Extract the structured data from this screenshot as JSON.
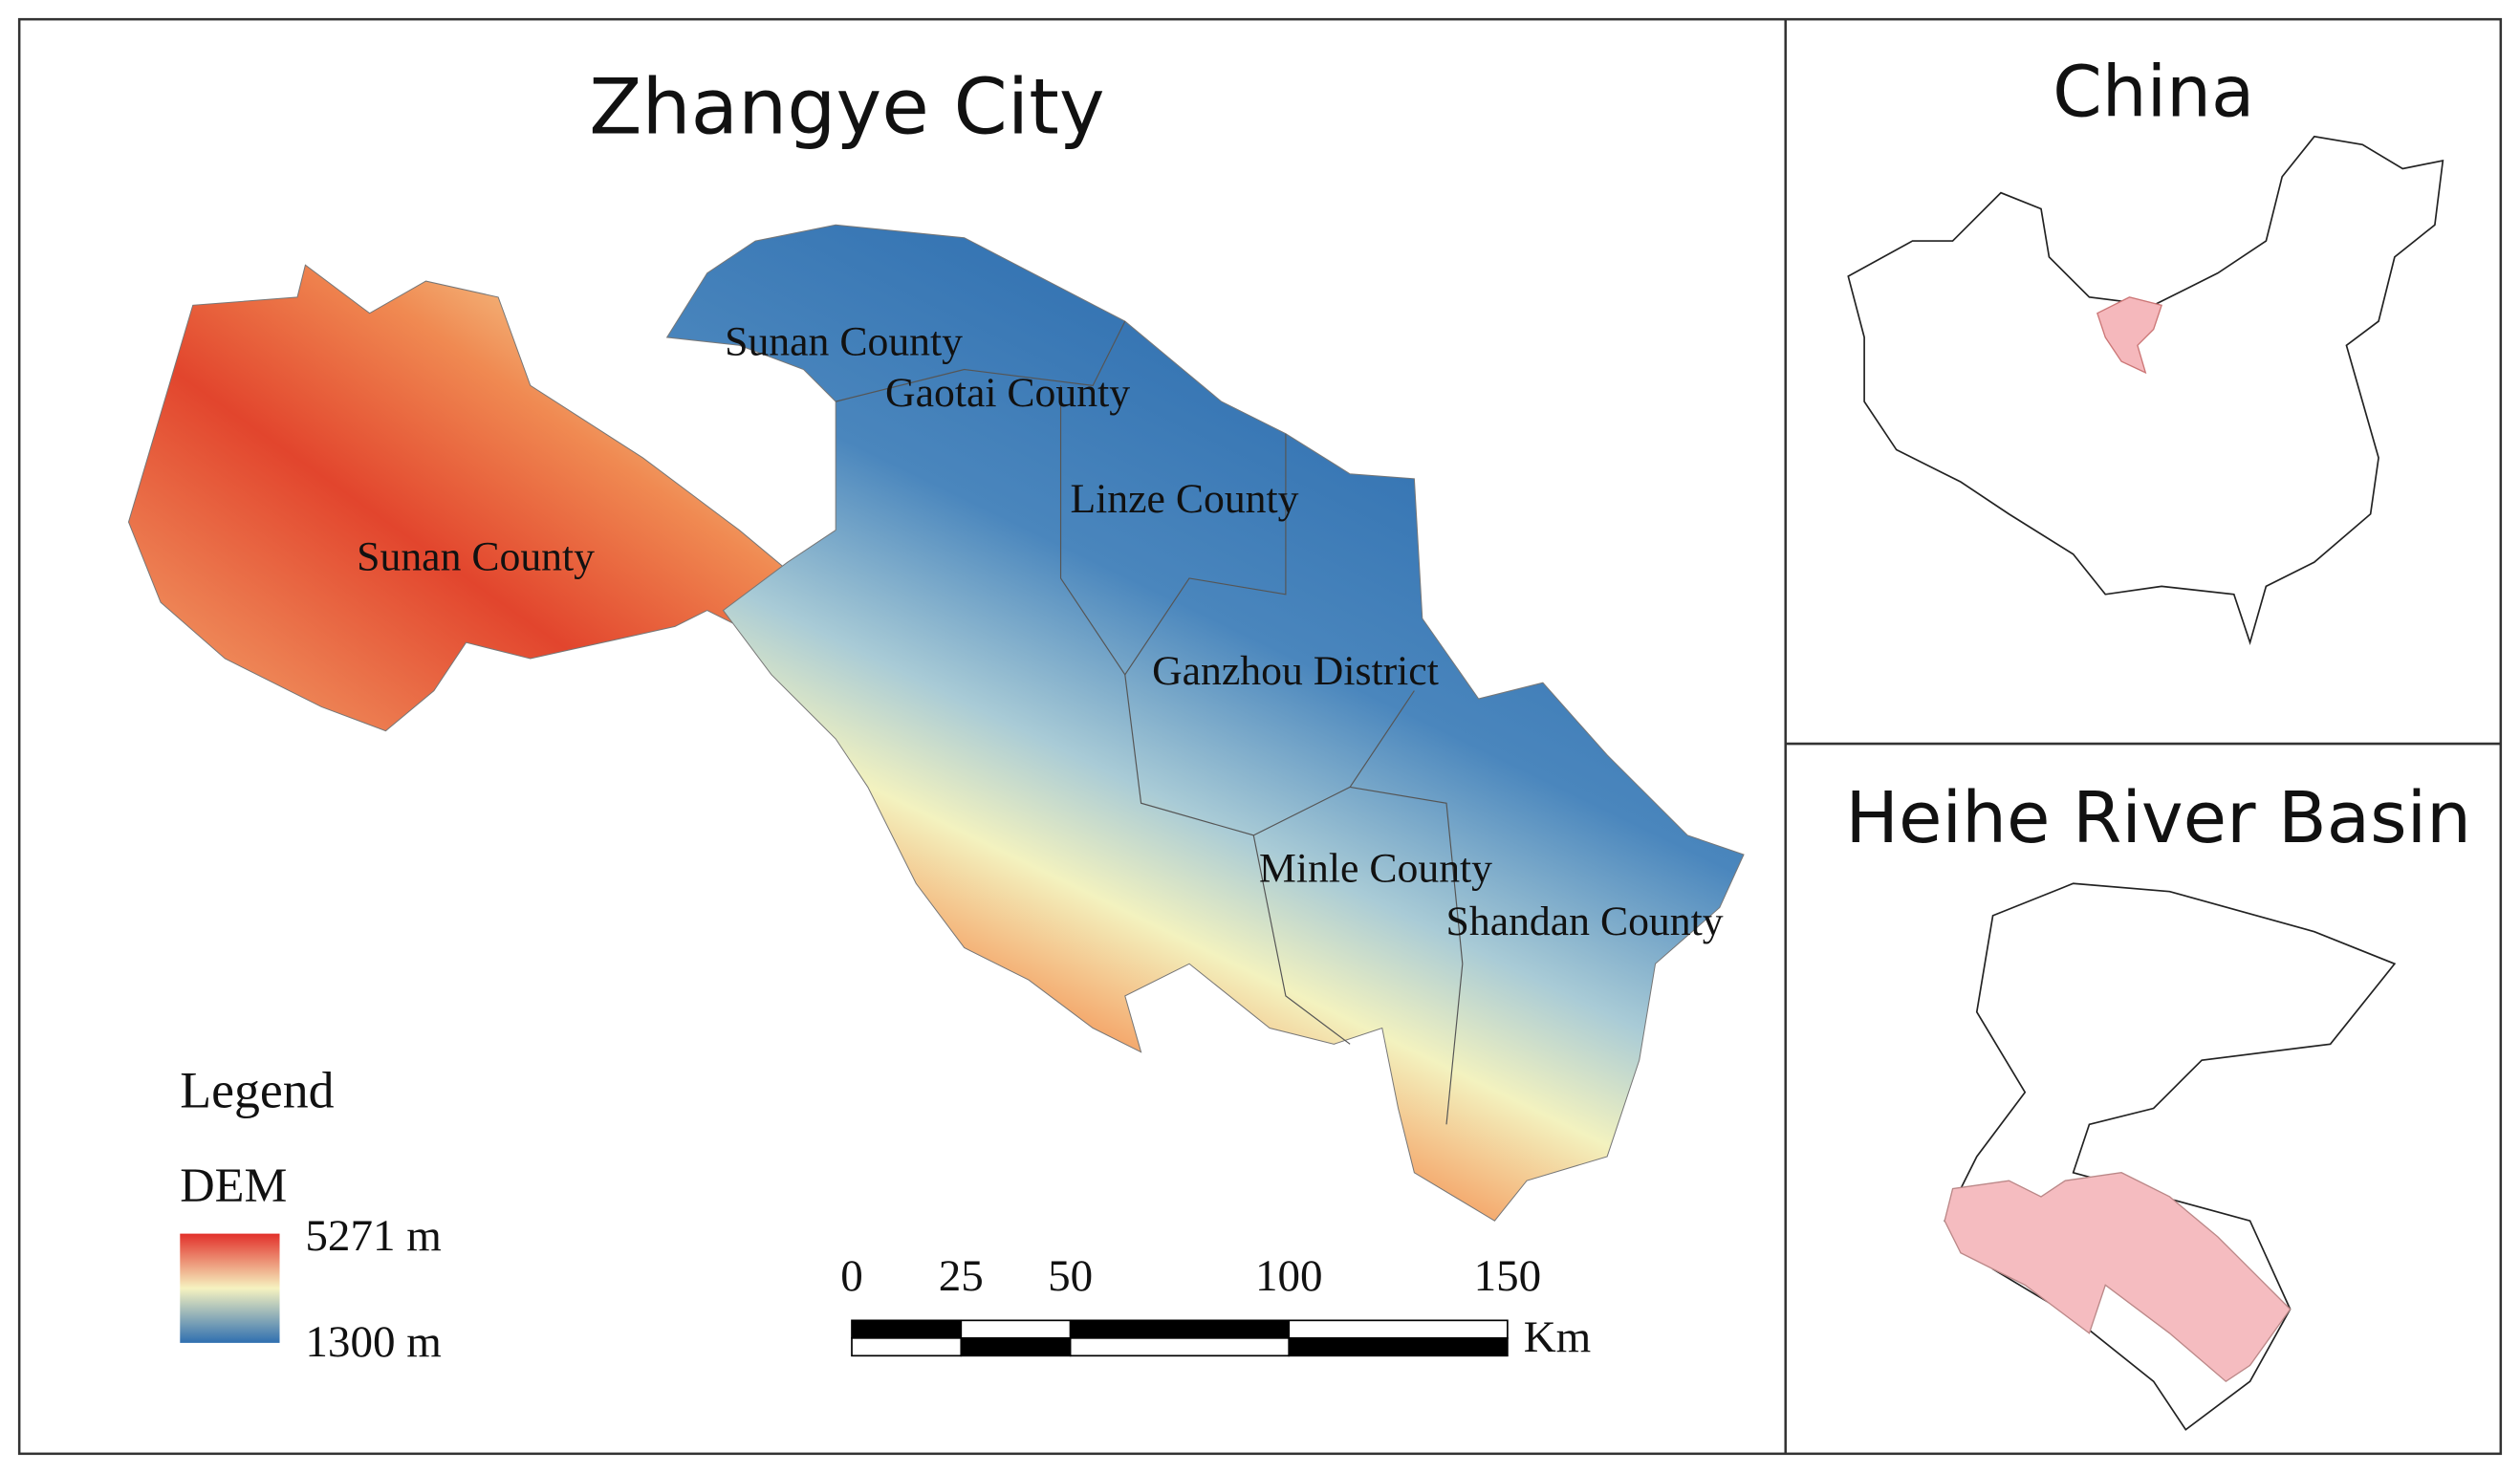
{
  "main_map": {
    "title": "Zhangye City",
    "labels": [
      "Sunan County",
      "Gaotai County",
      "Linze County",
      "Sunan County",
      "Ganzhou District",
      "Minle County",
      "Shandan County"
    ],
    "legend": {
      "title": "Legend",
      "layer": "DEM",
      "max_label": "5271 m",
      "min_label": "1300 m"
    },
    "scale_bar": {
      "ticks": [
        0,
        25,
        50,
        100,
        150
      ],
      "unit": "Km"
    }
  },
  "inset_china": {
    "title": "China"
  },
  "inset_basin": {
    "title": "Heihe River Basin"
  }
}
